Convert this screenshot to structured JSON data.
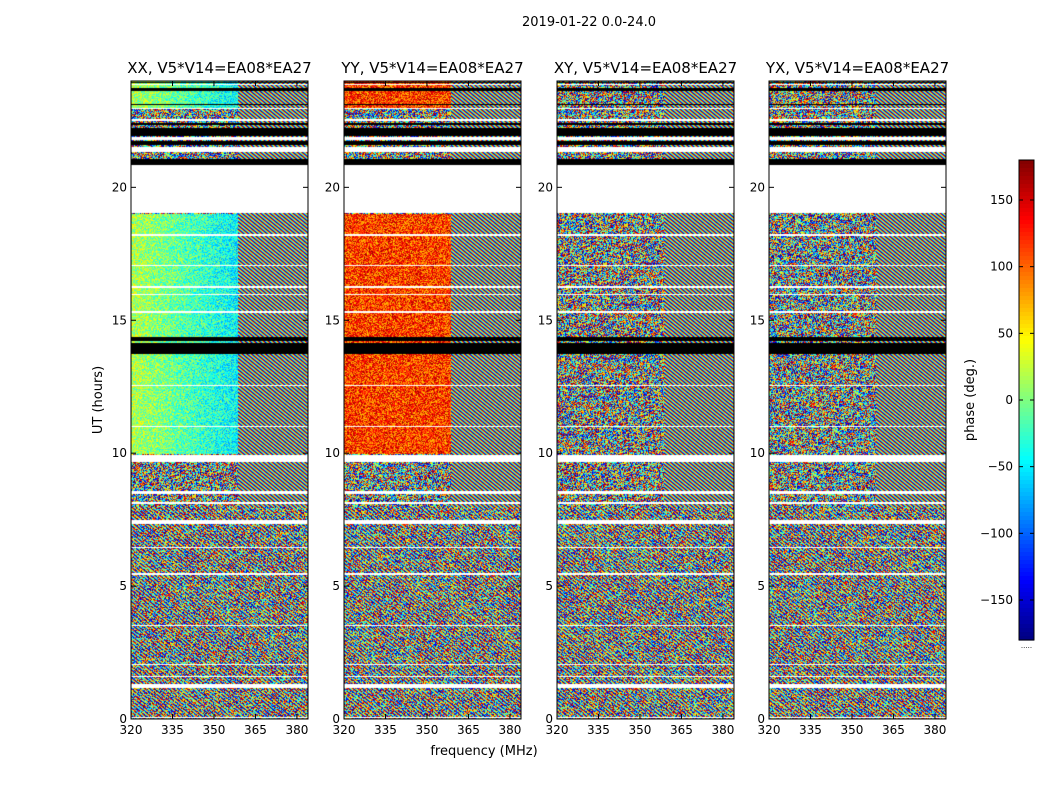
{
  "figure": {
    "suptitle": "2019-01-22 0.0-24.0"
  },
  "chart_data": {
    "type": "heatmap",
    "xlabel": "frequency (MHz)",
    "ylabel": "UT (hours)",
    "xlim": [
      320,
      384
    ],
    "ylim": [
      0,
      24
    ],
    "x_ticks": [
      320,
      335,
      350,
      365,
      380
    ],
    "y_ticks": [
      0,
      5,
      10,
      15,
      20
    ],
    "colormap": "jet",
    "colorbar": {
      "label": "phase (deg.)",
      "range": [
        -180,
        180
      ],
      "ticks": [
        -150,
        -100,
        -50,
        0,
        50,
        100,
        150
      ],
      "tick_labels": [
        "−150",
        "−100",
        "−50",
        "0",
        "50",
        "100",
        "150"
      ],
      "under_label": "....."
    },
    "panels": [
      {
        "title": "XX, V5*V14=EA08*EA27",
        "pattern": "XX"
      },
      {
        "title": "YY, V5*V14=EA08*EA27",
        "pattern": "YY"
      },
      {
        "title": "XY, V5*V14=EA08*EA27",
        "pattern": "XY"
      },
      {
        "title": "YX, V5*V14=EA08*EA27",
        "pattern": "YX"
      }
    ],
    "flagged_bands_hours": [
      [
        1.2,
        1.35
      ],
      [
        1.6,
        1.65
      ],
      [
        2.05,
        2.1
      ],
      [
        3.5,
        3.55
      ],
      [
        5.45,
        5.5
      ],
      [
        6.45,
        6.5
      ],
      [
        7.35,
        7.5
      ],
      [
        8.1,
        8.2
      ],
      [
        8.5,
        8.6
      ],
      [
        9.7,
        9.95
      ],
      [
        11.0,
        11.05
      ],
      [
        12.55,
        12.6
      ],
      [
        15.3,
        15.35
      ],
      [
        15.95,
        16.0
      ],
      [
        16.25,
        16.3
      ],
      [
        17.05,
        17.1
      ],
      [
        18.2,
        18.25
      ],
      [
        19.05,
        20.85
      ],
      [
        21.35,
        21.55
      ],
      [
        21.8,
        21.9
      ],
      [
        22.5,
        22.6
      ],
      [
        22.95,
        23.0
      ],
      [
        23.85,
        23.9
      ],
      [
        0.05,
        0.1
      ]
    ],
    "solid_bands_hours": [
      [
        20.85,
        21.1
      ],
      [
        21.6,
        21.75
      ],
      [
        21.95,
        22.25
      ],
      [
        22.35,
        22.45
      ],
      [
        23.1,
        23.15
      ],
      [
        23.65,
        23.75
      ],
      [
        23.95,
        24.0
      ],
      [
        13.75,
        14.15
      ],
      [
        14.25,
        14.4
      ]
    ]
  }
}
